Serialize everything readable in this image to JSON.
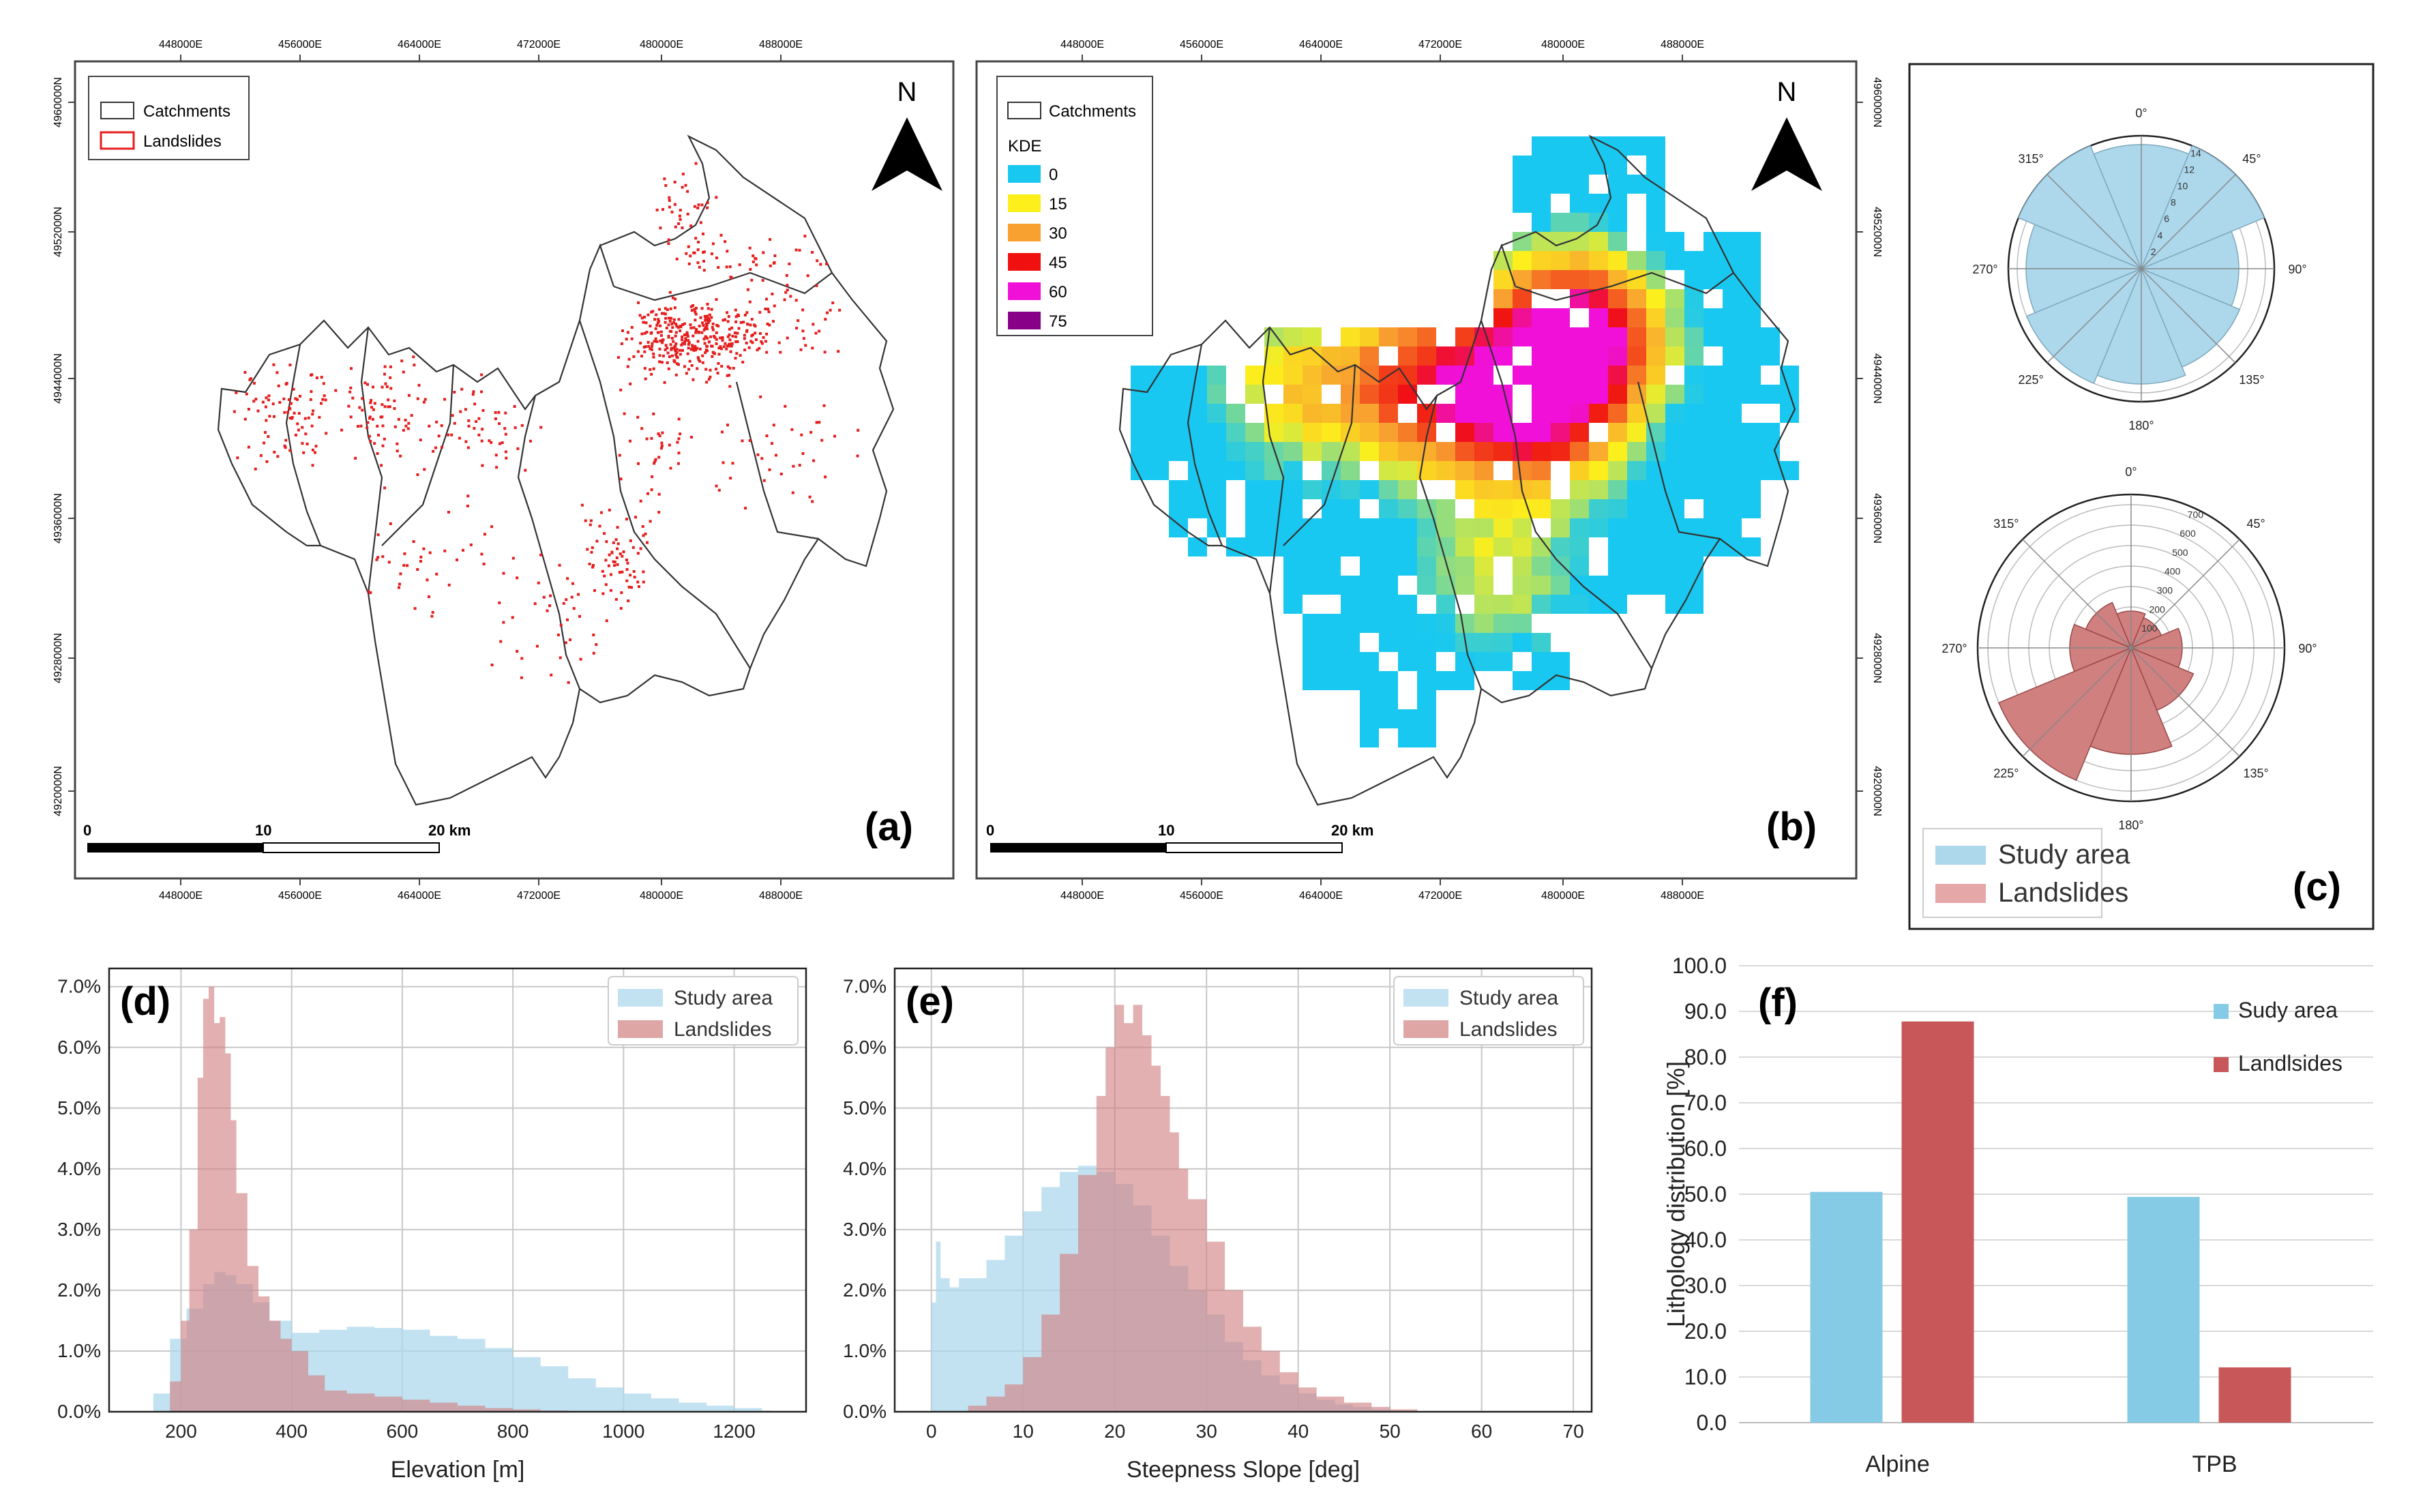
{
  "panel_a": {
    "letter": "(a)",
    "north": "N",
    "legend": {
      "catchments": "Catchments",
      "landslides": "Landslides"
    },
    "scalebar": {
      "start": "0",
      "mid": "10",
      "end": "20 km"
    },
    "x_ticks": [
      "448000E",
      "456000E",
      "464000E",
      "472000E",
      "480000E",
      "488000E"
    ],
    "y_ticks": [
      "4960000N",
      "4952000N",
      "4944000N",
      "4936000N",
      "4928000N",
      "4920000N"
    ]
  },
  "panel_b": {
    "letter": "(b)",
    "north": "N",
    "legend": {
      "catchments": "Catchments",
      "kde_title": "KDE",
      "classes": [
        {
          "label": "0",
          "color": "#19c8f0"
        },
        {
          "label": "15",
          "color": "#fcef1c"
        },
        {
          "label": "30",
          "color": "#f8a030"
        },
        {
          "label": "45",
          "color": "#f01010"
        },
        {
          "label": "60",
          "color": "#f010d8"
        },
        {
          "label": "75",
          "color": "#880088"
        }
      ]
    },
    "scalebar": {
      "start": "0",
      "mid": "10",
      "end": "20 km"
    },
    "x_ticks": [
      "448000E",
      "456000E",
      "464000E",
      "472000E",
      "480000E",
      "488000E"
    ],
    "y_ticks": [
      "4960000N",
      "4952000N",
      "4944000N",
      "4936000N",
      "4928000N",
      "4920000N"
    ]
  },
  "panel_c": {
    "letter": "(c)",
    "legend": {
      "study": "Study area",
      "landslides": "Landslides"
    },
    "colors": {
      "study": "#add8ec",
      "landslides": "#d18080"
    }
  },
  "chart_data": [
    {
      "panel": "c-top",
      "type": "polar-bar",
      "title": "",
      "angle_labels": [
        "0°",
        "45°",
        "90°",
        "135°",
        "180°",
        "225°",
        "270°",
        "315°"
      ],
      "radial_ticks": [
        "2",
        "4",
        "6",
        "8",
        "10",
        "12",
        "14"
      ],
      "rmax": 15,
      "sectors_deg": [
        0,
        45,
        90,
        135,
        180,
        225,
        270,
        315
      ],
      "values": [
        14,
        15,
        11,
        12,
        13,
        14,
        13,
        15
      ]
    },
    {
      "panel": "c-bottom",
      "type": "polar-bar",
      "title": "",
      "angle_labels": [
        "0°",
        "45°",
        "90°",
        "135°",
        "180°",
        "225°",
        "270°",
        "315°"
      ],
      "radial_ticks": [
        "100",
        "200",
        "300",
        "400",
        "500",
        "600",
        "700"
      ],
      "rmax": 750,
      "sectors_deg": [
        0,
        45,
        90,
        135,
        180,
        225,
        270,
        315
      ],
      "values": [
        180,
        160,
        250,
        330,
        520,
        700,
        300,
        240
      ]
    },
    {
      "panel": "d",
      "letter": "(d)",
      "type": "histogram",
      "xlabel": "Elevation [m]",
      "ylabel": "",
      "xlim": [
        70,
        1330
      ],
      "ylim": [
        0,
        7.3
      ],
      "x_ticks": [
        "200",
        "400",
        "600",
        "800",
        "1000",
        "1200"
      ],
      "y_ticks": [
        "0.0%",
        "1.0%",
        "2.0%",
        "3.0%",
        "4.0%",
        "5.0%",
        "6.0%",
        "7.0%"
      ],
      "legend": [
        "Study area",
        "Landslides"
      ],
      "series": [
        {
          "name": "Study area",
          "color": "#add8ec",
          "x": [
            110,
            150,
            180,
            210,
            240,
            260,
            280,
            300,
            330,
            360,
            400,
            450,
            500,
            550,
            600,
            650,
            700,
            750,
            800,
            850,
            900,
            950,
            1000,
            1050,
            1100,
            1150,
            1200,
            1250,
            1270
          ],
          "values": [
            0,
            0.3,
            1.2,
            1.7,
            2.1,
            2.3,
            2.25,
            2.1,
            1.8,
            1.5,
            1.3,
            1.35,
            1.4,
            1.38,
            1.35,
            1.25,
            1.2,
            1.05,
            0.9,
            0.75,
            0.55,
            0.4,
            0.3,
            0.22,
            0.15,
            0.1,
            0.06,
            0.02,
            0
          ]
        },
        {
          "name": "Landslides",
          "color": "#d18080",
          "x": [
            150,
            180,
            200,
            215,
            230,
            240,
            250,
            260,
            270,
            280,
            290,
            300,
            320,
            340,
            360,
            380,
            400,
            430,
            460,
            500,
            550,
            600,
            650,
            700,
            750,
            800,
            850,
            900
          ],
          "values": [
            0,
            0.5,
            1.5,
            3.0,
            5.5,
            6.8,
            7.0,
            6.4,
            6.5,
            5.9,
            4.8,
            3.6,
            2.4,
            1.9,
            1.5,
            1.2,
            1.0,
            0.6,
            0.35,
            0.3,
            0.25,
            0.2,
            0.15,
            0.1,
            0.06,
            0.04,
            0.02,
            0
          ]
        }
      ]
    },
    {
      "panel": "e",
      "letter": "(e)",
      "type": "histogram",
      "xlabel": "Steepness Slope [deg]",
      "ylabel": "",
      "xlim": [
        -4,
        72
      ],
      "ylim": [
        0,
        7.3
      ],
      "x_ticks": [
        "0",
        "10",
        "20",
        "30",
        "40",
        "50",
        "60",
        "70"
      ],
      "y_ticks": [
        "0.0%",
        "1.0%",
        "2.0%",
        "3.0%",
        "4.0%",
        "5.0%",
        "6.0%",
        "7.0%"
      ],
      "legend": [
        "Study area",
        "Landslides"
      ],
      "series": [
        {
          "name": "Study area",
          "color": "#add8ec",
          "x": [
            0,
            0.5,
            1,
            2,
            3,
            4,
            6,
            8,
            10,
            12,
            14,
            16,
            18,
            20,
            22,
            24,
            26,
            28,
            30,
            32,
            34,
            36,
            38,
            40,
            42,
            44,
            46,
            48,
            50,
            52
          ],
          "values": [
            1.8,
            2.8,
            2.2,
            2.05,
            2.2,
            2.2,
            2.5,
            2.9,
            3.3,
            3.7,
            3.95,
            4.05,
            3.95,
            3.75,
            3.4,
            2.9,
            2.4,
            2.0,
            1.6,
            1.15,
            0.85,
            0.6,
            0.45,
            0.3,
            0.2,
            0.12,
            0.08,
            0.04,
            0.02,
            0
          ]
        },
        {
          "name": "Landslides",
          "color": "#d18080",
          "x": [
            2,
            4,
            6,
            8,
            10,
            12,
            14,
            16,
            18,
            19,
            20,
            21,
            22,
            23,
            24,
            25,
            26,
            27,
            28,
            30,
            32,
            34,
            36,
            38,
            40,
            42,
            45,
            48,
            50,
            53
          ],
          "values": [
            0,
            0.1,
            0.25,
            0.45,
            0.9,
            1.6,
            2.6,
            3.9,
            5.2,
            6.0,
            6.7,
            6.4,
            6.7,
            6.2,
            5.7,
            5.2,
            4.6,
            4.0,
            3.5,
            2.8,
            2.0,
            1.4,
            1.0,
            0.65,
            0.4,
            0.25,
            0.15,
            0.08,
            0.04,
            0
          ]
        }
      ]
    },
    {
      "panel": "f",
      "letter": "(f)",
      "type": "bar",
      "xlabel": "",
      "ylabel": "Lithology distribution [%]",
      "categories": [
        "Alpine",
        "TPB"
      ],
      "ylim": [
        0,
        100
      ],
      "y_ticks": [
        "0.0",
        "10.0",
        "20.0",
        "30.0",
        "40.0",
        "50.0",
        "60.0",
        "70.0",
        "80.0",
        "90.0",
        "100.0"
      ],
      "legend": [
        "Sudy area",
        "Landlsides"
      ],
      "series": [
        {
          "name": "Sudy area",
          "color": "#86cbe6",
          "values": [
            50.5,
            49.4
          ]
        },
        {
          "name": "Landlsides",
          "color": "#c8575a",
          "values": [
            87.8,
            12.1
          ]
        }
      ]
    }
  ]
}
